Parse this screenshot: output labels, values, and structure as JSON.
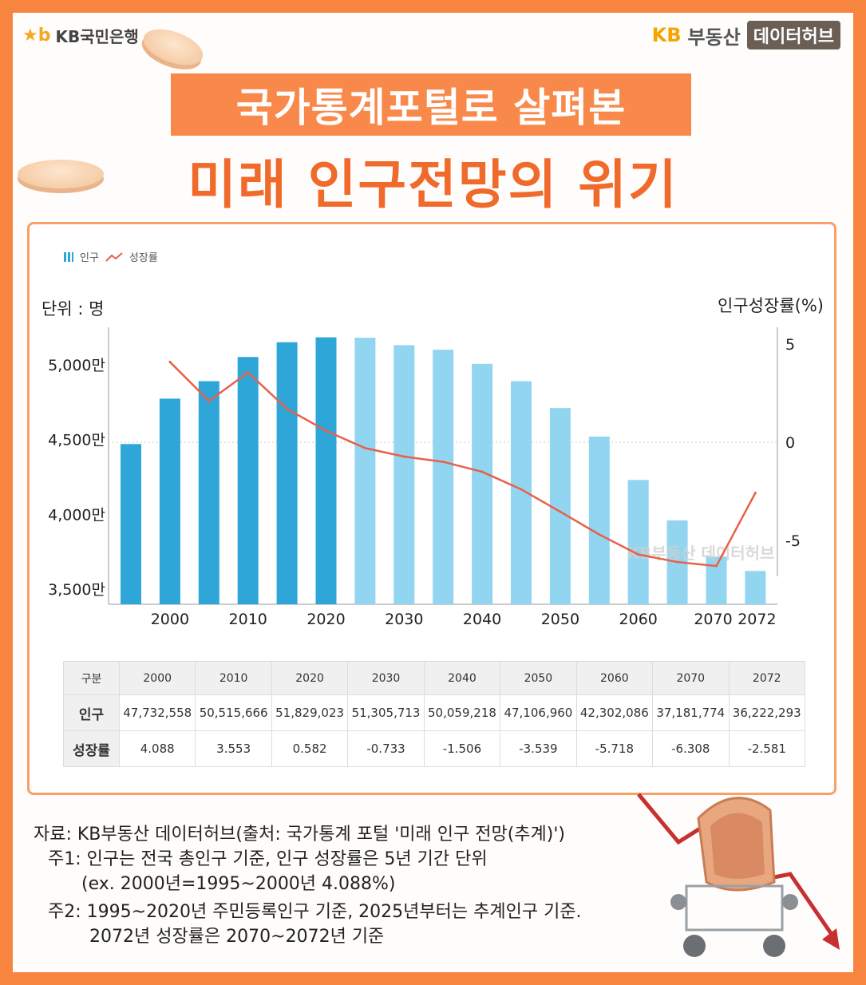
{
  "header": {
    "brand_left_symbol": "★b",
    "brand_left": "KB국민은행",
    "brand_right_kb": "KB",
    "brand_right_name": "부동산",
    "brand_right_hub": "데이터허브",
    "banner_line1": "국가통계포털로 살펴본",
    "title_line2": "미래 인구전망의 위기"
  },
  "chart_data": {
    "type": "bar",
    "legend": [
      "인구",
      "성장률"
    ],
    "left_axis_label": "단위 : 명",
    "right_axis_label": "인구성장률(%)",
    "left_ticks": [
      "5,000만",
      "4,500만",
      "4,000만",
      "3,500만"
    ],
    "left_tick_values": [
      50000000,
      45000000,
      40000000,
      35000000
    ],
    "right_ticks": [
      "5",
      "0",
      "-5"
    ],
    "right_tick_values": [
      5,
      0,
      -5
    ],
    "x_labels": [
      "2000",
      "2010",
      "2020",
      "2030",
      "2040",
      "2050",
      "2060",
      "2070",
      "2072"
    ],
    "ylim_left": [
      34000000,
      52500000
    ],
    "ylim_right": [
      -7,
      5
    ],
    "bars": {
      "name": "인구",
      "years": [
        1995,
        2000,
        2005,
        2010,
        2015,
        2020,
        2025,
        2030,
        2035,
        2040,
        2045,
        2050,
        2055,
        2060,
        2065,
        2070,
        2072
      ],
      "values": [
        44700000,
        47732558,
        48900000,
        50515666,
        51500000,
        51829023,
        51800000,
        51305713,
        51000000,
        50059218,
        48900000,
        47106960,
        45200000,
        42302086,
        39600000,
        37181774,
        36222293
      ],
      "projected_from_index": 6,
      "color_actual": "#2ea7d8",
      "color_projected": "#92d5f0"
    },
    "line": {
      "name": "성장률",
      "x": [
        2000,
        2005,
        2010,
        2015,
        2020,
        2025,
        2030,
        2035,
        2040,
        2045,
        2050,
        2055,
        2060,
        2065,
        2070,
        2072
      ],
      "values": [
        4.088,
        2.1,
        3.553,
        1.7,
        0.582,
        -0.3,
        -0.733,
        -1.0,
        -1.506,
        -2.4,
        -3.539,
        -4.7,
        -5.718,
        -6.1,
        -6.308,
        -2.581
      ],
      "color": "#e8604a"
    },
    "watermark": "KB부동산 데이터허브"
  },
  "table": {
    "header_label": "구분",
    "years": [
      "2000",
      "2010",
      "2020",
      "2030",
      "2040",
      "2050",
      "2060",
      "2070",
      "2072"
    ],
    "population_label": "인구",
    "population": [
      "47,732,558",
      "50,515,666",
      "51,829,023",
      "51,305,713",
      "50,059,218",
      "47,106,960",
      "42,302,086",
      "37,181,774",
      "36,222,293"
    ],
    "growth_label": "성장률",
    "growth": [
      "4.088",
      "3.553",
      "0.582",
      "-0.733",
      "-1.506",
      "-3.539",
      "-5.718",
      "-6.308",
      "-2.581"
    ]
  },
  "notes": {
    "source": "자료: KB부동산 데이터허브(출처: 국가통계 포털 '미래 인구 전망(추계)')",
    "note1": "주1: 인구는 전국 총인구 기준, 인구 성장률은 5년 기간 단위",
    "note1b": "(ex. 2000년=1995~2000년 4.088%)",
    "note2": "주2: 1995~2020년 주민등록인구 기준, 2025년부터는 추계인구 기준.",
    "note2b": "2072년 성장률은 2070~2072년 기준"
  },
  "colors": {
    "frame": "#f7853f",
    "banner": "#f9894a",
    "title": "#f06a2c"
  }
}
